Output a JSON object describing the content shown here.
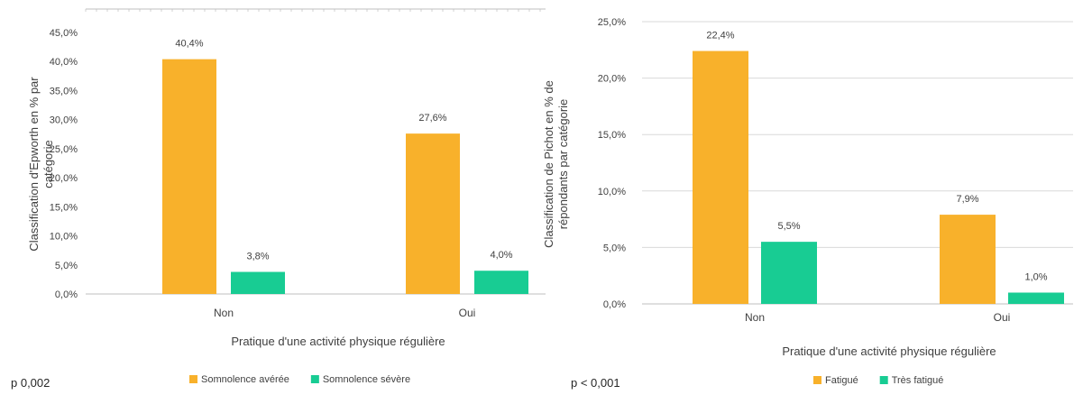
{
  "colors": {
    "series1": "#F8B12B",
    "series2": "#18CC93",
    "grid": "#D9D9D9",
    "axis": "#BFBFBF"
  },
  "chart_data": [
    {
      "type": "bar",
      "categories": [
        "Non",
        "Oui"
      ],
      "series": [
        {
          "name": "Somnolence avérée",
          "values": [
            40.4,
            27.6
          ],
          "labels": [
            "40,4%",
            "27,6%"
          ]
        },
        {
          "name": "Somnolence sévère",
          "values": [
            3.8,
            4.0
          ],
          "labels": [
            "3,8%",
            "4,0%"
          ]
        }
      ],
      "xlabel": "Pratique d'une activité physique régulière",
      "ylabel": [
        "Classification d'Epworth en % par",
        "catégorie"
      ],
      "ylim": [
        0,
        45
      ],
      "yticks": [
        {
          "value": 0,
          "label": "0,0%"
        },
        {
          "value": 5,
          "label": "5,0%"
        },
        {
          "value": 10,
          "label": "10,0%"
        },
        {
          "value": 15,
          "label": "15,0%"
        },
        {
          "value": 20,
          "label": "20,0%"
        },
        {
          "value": 25,
          "label": "25,0%"
        },
        {
          "value": 30,
          "label": "30,0%"
        },
        {
          "value": 35,
          "label": "35,0%"
        },
        {
          "value": 40,
          "label": "40,0%"
        },
        {
          "value": 45,
          "label": "45,0%"
        }
      ],
      "grid": false,
      "legend": "bottom",
      "note": "p 0,002"
    },
    {
      "type": "bar",
      "categories": [
        "Non",
        "Oui"
      ],
      "series": [
        {
          "name": "Fatigué",
          "values": [
            22.4,
            7.9
          ],
          "labels": [
            "22,4%",
            "7,9%"
          ]
        },
        {
          "name": "Très fatigué",
          "values": [
            5.5,
            1.0
          ],
          "labels": [
            "5,5%",
            "1,0%"
          ]
        }
      ],
      "xlabel": "Pratique d'une activité physique régulière",
      "ylabel": [
        "Classification de Pichot en % de",
        "répondants par catégorie"
      ],
      "ylim": [
        0,
        25
      ],
      "yticks": [
        {
          "value": 0,
          "label": "0,0%"
        },
        {
          "value": 5,
          "label": "5,0%"
        },
        {
          "value": 10,
          "label": "10,0%"
        },
        {
          "value": 15,
          "label": "15,0%"
        },
        {
          "value": 20,
          "label": "20,0%"
        },
        {
          "value": 25,
          "label": "25,0%"
        }
      ],
      "grid": true,
      "legend": "bottom",
      "note": "p < 0,001"
    }
  ]
}
